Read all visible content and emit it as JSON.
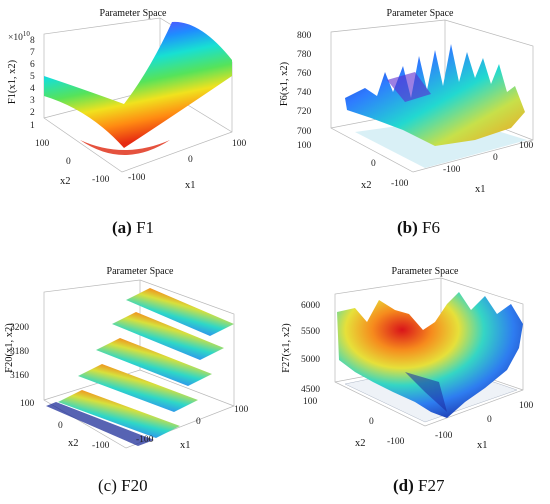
{
  "figure": {
    "captions": [
      {
        "letter": "(a)",
        "name": "F1"
      },
      {
        "letter": "(b)",
        "name": "F6"
      },
      {
        "letter": "(c)",
        "name": "F20"
      },
      {
        "letter": "(d)",
        "name": "F27"
      }
    ]
  },
  "chart_data": [
    {
      "type": "surface",
      "title": "Parameter Space",
      "xlabel": "x1",
      "ylabel": "x2",
      "zlabel": "F1(x1, x2)",
      "xlim": [
        -100,
        100
      ],
      "ylim": [
        -100,
        100
      ],
      "x_ticks": [
        "-100",
        "0",
        "100"
      ],
      "y_ticks": [
        "-100",
        "0",
        "100"
      ],
      "z_ticks": [
        "1",
        "2",
        "3",
        "4",
        "5",
        "6",
        "7",
        "8"
      ],
      "z_exponent": "10",
      "zlim": [
        0,
        80000000000.0
      ]
    },
    {
      "type": "surface",
      "title": "Parameter Space",
      "xlabel": "x1",
      "ylabel": "x2",
      "zlabel": "F6(x1, x2)",
      "xlim": [
        -100,
        100
      ],
      "ylim": [
        -100,
        100
      ],
      "x_ticks": [
        "-100",
        "0",
        "100"
      ],
      "y_ticks": [
        "-100",
        "0",
        "100"
      ],
      "z_ticks": [
        "700",
        "720",
        "740",
        "760",
        "780",
        "800"
      ],
      "zlim": [
        690,
        810
      ]
    },
    {
      "type": "surface",
      "title": "Parameter Space",
      "xlabel": "x1",
      "ylabel": "x2",
      "zlabel": "F20(x1, x2)",
      "xlim": [
        -100,
        100
      ],
      "ylim": [
        -100,
        100
      ],
      "x_ticks": [
        "-100",
        "0",
        "100"
      ],
      "y_ticks": [
        "-100",
        "0",
        "100"
      ],
      "z_ticks": [
        "3160",
        "3180",
        "3200"
      ],
      "zlim": [
        3150,
        3220
      ]
    },
    {
      "type": "surface",
      "title": "Parameter Space",
      "xlabel": "x1",
      "ylabel": "x2",
      "zlabel": "F27(x1, x2)",
      "xlim": [
        -100,
        100
      ],
      "ylim": [
        -100,
        100
      ],
      "x_ticks": [
        "-100",
        "0",
        "100"
      ],
      "y_ticks": [
        "-100",
        "0",
        "100"
      ],
      "z_ticks": [
        "4500",
        "5000",
        "5500",
        "6000"
      ],
      "zlim": [
        4300,
        6100
      ]
    }
  ]
}
